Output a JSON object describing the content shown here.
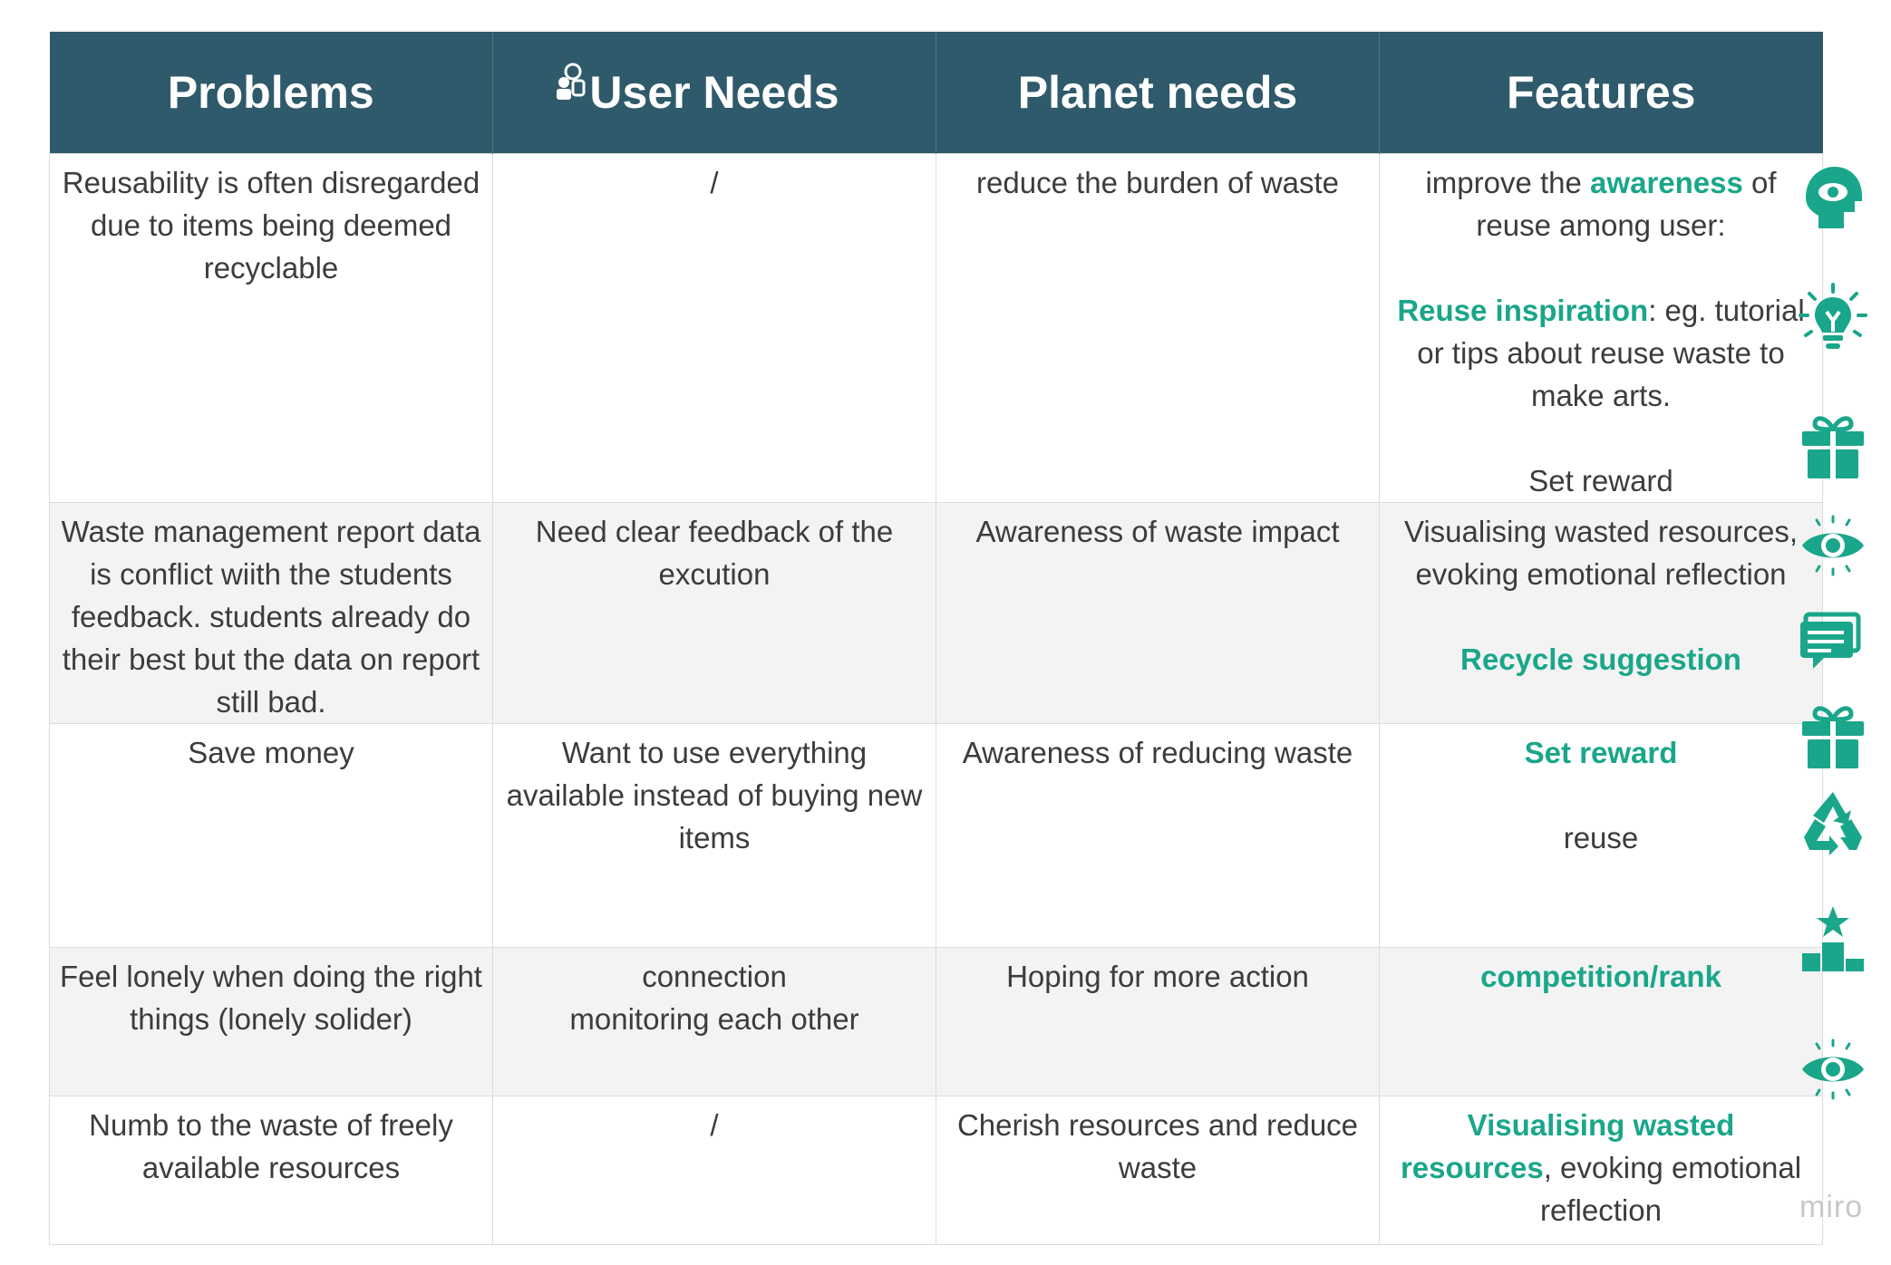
{
  "headers": {
    "problems": "Problems",
    "user_needs": "User Needs",
    "planet_needs": "Planet needs",
    "features": "Features"
  },
  "rows": [
    {
      "problem": "Reusability is often disregarded due to items being deemed recyclable",
      "user_need": "/",
      "planet_need": "reduce the burden of waste",
      "feature": {
        "pre": "improve the ",
        "hl": "awareness",
        "post": " of reuse among user:",
        "inspiration_hl": "Reuse inspiration",
        "inspiration_rest": ": eg. tutorial or tips about reuse waste to make arts.",
        "reward": "Set reward"
      }
    },
    {
      "problem": "Waste management report data is conflict wiith the students feedback. students already do their best but the data on report still bad.",
      "user_need": "Need clear feedback of the excution",
      "planet_need": "Awareness of waste impact",
      "feature": {
        "text": "Visualising wasted resources, evoking emotional reflection",
        "hl": "Recycle suggestion"
      }
    },
    {
      "problem": "Save money",
      "user_need": "Want to use everything available instead of buying new items",
      "planet_need": "Awareness of reducing waste",
      "feature": {
        "hl": "Set reward",
        "text": "reuse"
      }
    },
    {
      "problem": "Feel lonely when doing the right things (lonely solider)",
      "user_need_line1": "connection",
      "user_need_line2": "monitoring each other",
      "planet_need": "Hoping for more action",
      "feature": {
        "hl": "competition/rank"
      }
    },
    {
      "problem": "Numb to the waste of freely available resources",
      "user_need": "/",
      "planet_need": "Cherish resources and reduce waste",
      "feature": {
        "hl": "Visualising wasted resources",
        "rest": ", evoking emotional reflection"
      }
    }
  ],
  "icons": [
    "head-eye-icon",
    "lightbulb-icon",
    "gift-icon",
    "eye-icon",
    "chat-icon",
    "gift-icon",
    "recycle-icon",
    "podium-star-icon",
    "eye-icon"
  ],
  "watermark": "miro",
  "colors": {
    "header_bg": "#2f5a6b",
    "accent": "#1aa68a",
    "shaded_row": "#f3f3f3"
  }
}
